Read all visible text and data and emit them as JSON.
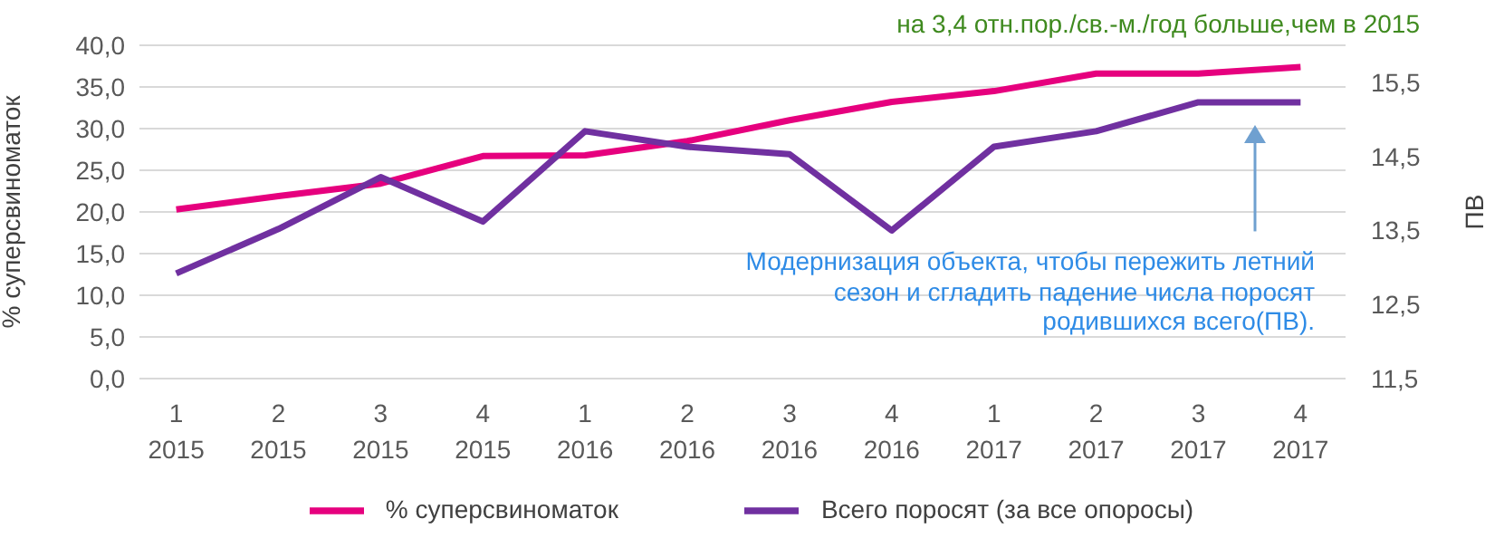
{
  "chart_data": {
    "type": "line",
    "categories": [
      "1\n2015",
      "2\n2015",
      "3\n2015",
      "4\n2015",
      "1\n2016",
      "2\n2016",
      "3\n2016",
      "4\n2016",
      "1\n2017",
      "2\n2017",
      "3\n2017",
      "4\n2017"
    ],
    "series": [
      {
        "name": "% суперсвиноматок",
        "color": "#e6007e",
        "values": [
          20.3,
          21.9,
          23.4,
          26.7,
          26.8,
          28.5,
          31.0,
          33.2,
          34.5,
          36.6,
          36.6,
          37.4
        ]
      },
      {
        "name": "Всего поросят (за все опоросы)",
        "color": "#7030a0",
        "axis": "y2",
        "values": [
          12.92,
          13.52,
          14.22,
          13.62,
          14.84,
          14.63,
          14.53,
          13.5,
          14.63,
          14.84,
          15.23,
          15.23
        ]
      }
    ],
    "ylabel": "% суперсвиноматок",
    "y2label": "ПВ",
    "ylim": [
      0,
      40
    ],
    "yticks": [
      {
        "value": 0,
        "label": "0,0"
      },
      {
        "value": 5,
        "label": "5,0"
      },
      {
        "value": 10,
        "label": "10,0"
      },
      {
        "value": 15,
        "label": "15,0"
      },
      {
        "value": 20,
        "label": "20,0"
      },
      {
        "value": 25,
        "label": "25,0"
      },
      {
        "value": 30,
        "label": "30,0"
      },
      {
        "value": 35,
        "label": "35,0"
      },
      {
        "value": 40,
        "label": "40,0"
      }
    ],
    "y2lim": [
      11.5,
      16.0
    ],
    "y2ticks": [
      {
        "value": 11.5,
        "label": "11,5"
      },
      {
        "value": 12.5,
        "label": "12,5"
      },
      {
        "value": 13.5,
        "label": "13,5"
      },
      {
        "value": 14.5,
        "label": "14,5"
      },
      {
        "value": 15.5,
        "label": "15,5"
      }
    ],
    "annotations": [
      "на 3,4 отн.пор./св.-м./год больше,чем в 2015",
      "Модернизация объекта, чтобы пережить летний сезон и сгладить падение числа поросят родившихся всего(ПВ)."
    ],
    "grid": "y",
    "legend": "bottom",
    "marker": "none",
    "line_style": "solid"
  }
}
